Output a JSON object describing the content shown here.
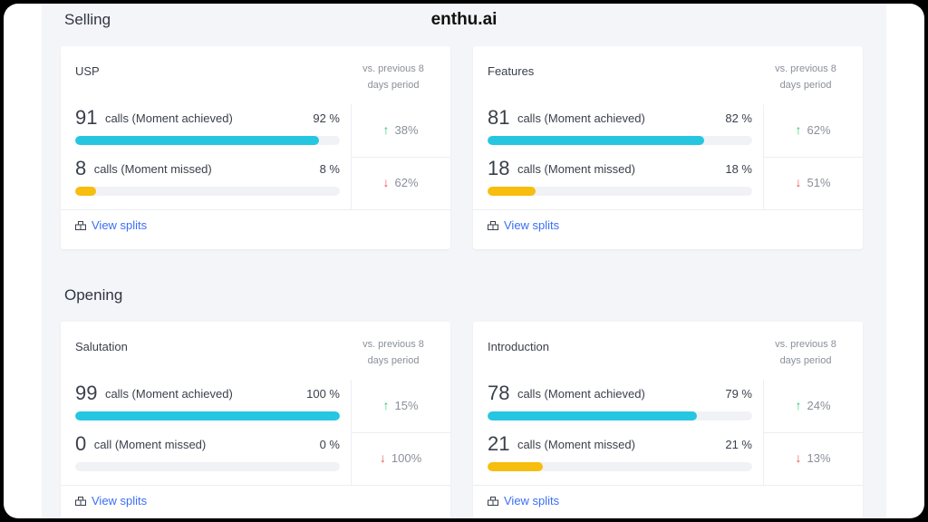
{
  "brand": "enthu.ai",
  "sections": [
    {
      "title": "Selling",
      "cards": [
        {
          "title": "USP",
          "vs_label": "vs. previous 8 days period",
          "achieved": {
            "count": "91",
            "label": "calls (Moment achieved)",
            "percent": "92 %",
            "fill": 0.92,
            "trend": "38%",
            "trend_dir": "up"
          },
          "missed": {
            "count": "8",
            "label": "calls (Moment missed)",
            "percent": "8 %",
            "fill": 0.08,
            "trend": "62%",
            "trend_dir": "down"
          },
          "link": "View splits"
        },
        {
          "title": "Features",
          "vs_label": "vs. previous 8 days period",
          "achieved": {
            "count": "81",
            "label": "calls (Moment achieved)",
            "percent": "82 %",
            "fill": 0.82,
            "trend": "62%",
            "trend_dir": "up"
          },
          "missed": {
            "count": "18",
            "label": "calls (Moment missed)",
            "percent": "18 %",
            "fill": 0.18,
            "trend": "51%",
            "trend_dir": "down"
          },
          "link": "View splits"
        }
      ]
    },
    {
      "title": "Opening",
      "cards": [
        {
          "title": "Salutation",
          "vs_label": "vs. previous 8 days period",
          "achieved": {
            "count": "99",
            "label": "calls (Moment achieved)",
            "percent": "100 %",
            "fill": 1.0,
            "trend": "15%",
            "trend_dir": "up"
          },
          "missed": {
            "count": "0",
            "label": "call (Moment missed)",
            "percent": "0 %",
            "fill": 0.0,
            "trend": "100%",
            "trend_dir": "down"
          },
          "link": "View splits"
        },
        {
          "title": "Introduction",
          "vs_label": "vs. previous 8 days period",
          "achieved": {
            "count": "78",
            "label": "calls (Moment achieved)",
            "percent": "79 %",
            "fill": 0.79,
            "trend": "24%",
            "trend_dir": "up"
          },
          "missed": {
            "count": "21",
            "label": "calls (Moment missed)",
            "percent": "21 %",
            "fill": 0.21,
            "trend": "13%",
            "trend_dir": "down"
          },
          "link": "View splits"
        }
      ]
    }
  ],
  "colors": {
    "achieved": "#26c6e0",
    "missed": "#f7bd0f",
    "link": "#3b6ef5",
    "up": "#2ecc71",
    "down": "#f05252"
  }
}
